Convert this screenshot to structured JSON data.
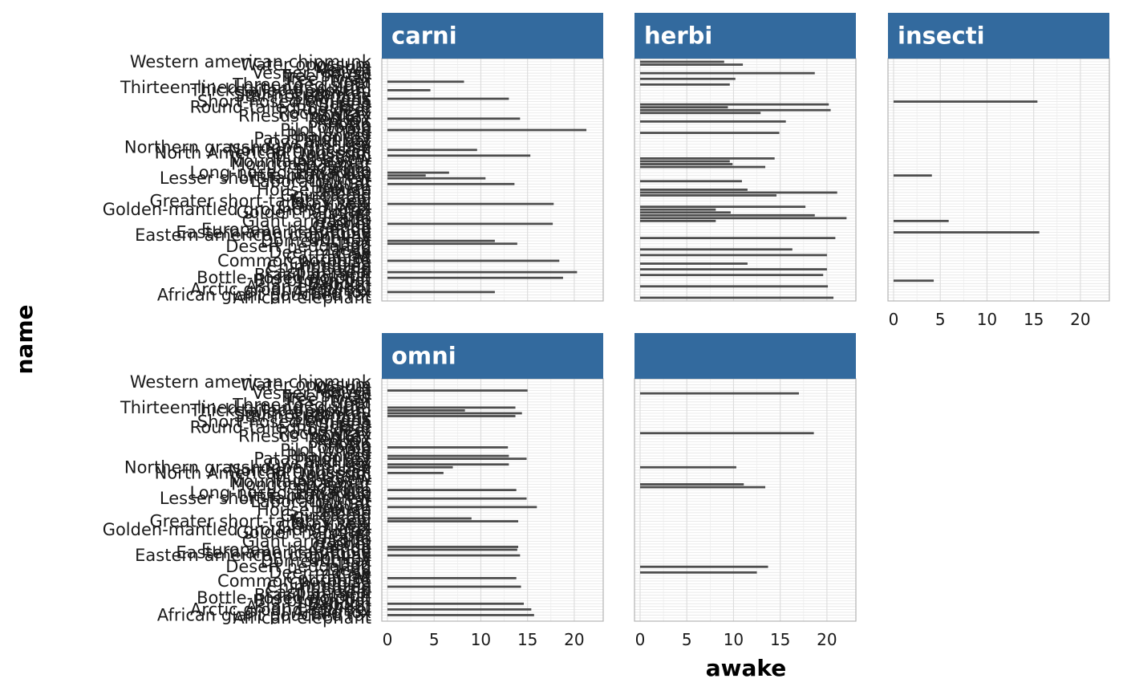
{
  "chart_data": {
    "type": "bar",
    "orientation": "horizontal",
    "xlabel": "awake",
    "ylabel": "name",
    "xlim": [
      -0.6,
      23.1
    ],
    "xticks": [
      0,
      5,
      10,
      15,
      20
    ],
    "strip_color": "#336A9E",
    "bar_color": "#4D4D4D",
    "grid": true,
    "names": [
      "African elephant",
      "African giant pouched rat",
      "Arctic fox",
      "Arctic ground squirrel",
      "Asian elephant",
      "Baboon",
      "Big brown bat",
      "Bottle-nosed dolphin",
      "Brazilian tapir",
      "Caspian seal",
      "Cattle",
      "Chimpanzee",
      "Chinchilla",
      "Common porpoise",
      "Cotton rat",
      "Cow",
      "Deer mouse",
      "Degu",
      "Desert hedgehog",
      "Dog",
      "Domestic cat",
      "Donkey",
      "Eastern american chipmunk",
      "Eastern american mole",
      "European hedgehog",
      "Galago",
      "Genet",
      "Giant armadillo",
      "Giraffe",
      "Goat",
      "Golden hamster",
      "Golden-mantled ground squirrel",
      "Gray hyrax",
      "Gray seal",
      "Greater short-tailed shrew",
      "Grey seal",
      "Guinea pig",
      "Horse",
      "House mouse",
      "Human",
      "Jaguar",
      "Laboratory rat",
      "Lesser short-tailed shrew",
      "Little brown bat",
      "Long-nosed armadillo",
      "Macaque",
      "Mole rat",
      "Mongoose lemur",
      "Mountain beaver",
      "Musk shrew",
      "Mustelid",
      "North American Opossum",
      "Northern fur seal",
      "Northern grasshopper mouse",
      "Owl monkey",
      "Pallid bat",
      "Patas monkey",
      "Phalanger",
      "Pig",
      "Pilot whale",
      "Potoroo",
      "Potto",
      "Rabbit",
      "Red fox",
      "Rhesus monkey",
      "Rock hyrax",
      "Roe deer",
      "Round-tailed muskrat",
      "Sheep",
      "Short-nosed echidna",
      "Slow loris",
      "Star-nosed mole",
      "Squirrel monkey",
      "Thick-tailed opposum",
      "Thirteen-lined ground squirrel",
      "Three-toed sloth",
      "Tiger",
      "Tree hyrax",
      "Tree shrew",
      "Vesper mouse",
      "Vervet",
      "Walrus",
      "Water opossum",
      "Western american chipmunk"
    ],
    "panels": [
      {
        "label": "carni",
        "values": {
          "Arctic fox": 11.5,
          "Bottle-nosed dolphin": 18.8,
          "Caspian seal": 20.3,
          "Cheetah": 11.9,
          "Common porpoise": 18.4,
          "Dog": 13.9,
          "Domestic cat": 11.5,
          "Genet": 17.7,
          "Gray seal": 17.8,
          "Jaguar": 13.6,
          "Little brown bat": 4.1,
          "Lesser short-tailed shrew": 10.5,
          "Long-nosed armadillo": 6.6,
          "Mustelid": 15.3,
          "Northern fur seal": 9.6,
          "Pilot whale": 21.3,
          "Red fox": 14.2,
          "Slow loris": 13.0,
          "Thick-tailed opposum": 4.6,
          "Tiger": 8.2
        }
      },
      {
        "label": "herbi",
        "values": {
          "African elephant": 20.7,
          "Asian elephant": 20.1,
          "Brazilian tapir": 19.6,
          "Cattle": 20.0,
          "Chinchilla": 11.5,
          "Cow": 20.0,
          "Degu": 16.3,
          "Donkey": 20.9,
          "Giant armadillo": 8.1,
          "Giraffe": 22.1,
          "Goat": 18.7,
          "Golden hamster": 9.7,
          "Golden-mantled ground squirrel": 8.1,
          "Gray hyrax": 17.7,
          "Guinea pig": 14.6,
          "Horse": 21.1,
          "House mouse": 11.5,
          "Laboratory rat": 10.9,
          "Mole rat": 13.4,
          "Mongoose lemur": 9.9,
          "Mountain beaver": 9.6,
          "Musk shrew": 14.4,
          "Pig": 14.9,
          "Rabbit": 15.6,
          "Rock hyrax": 12.9,
          "Roe deer": 20.4,
          "Round-tailed muskrat": 9.4,
          "Sheep": 20.2,
          "Three-toed sloth": 9.6,
          "Tree hyrax": 10.2,
          "Vesper mouse": 18.7,
          "Western american chipmunk": 9.0,
          "Water opossum": 11.0
        }
      },
      {
        "label": "insecti",
        "values": {
          "Big brown bat": 4.3,
          "Eastern american mole": 15.6,
          "Giant armadillo": 5.9,
          "Little brown bat": 4.1,
          "Short-nosed echidna": 15.4
        }
      },
      {
        "label": "omni",
        "values": {
          "African giant pouched rat": 15.7,
          "Arctic ground squirrel": 15.4,
          "Baboon": 14.6,
          "Chimpanzee": 14.3,
          "Cotton rat": 13.8,
          "Eastern american chipmunk": 14.2,
          "European hedgehog": 13.9,
          "Galago": 14.0,
          "Grey seal": 9.0,
          "Greater short-tailed shrew": 14.0,
          "Human": 16.0,
          "Lesser short-tailed shrew": 14.9,
          "Macaque": 13.8,
          "North American Opossum": 6.0,
          "Northern grasshopper mouse": 7.0,
          "Owl monkey": 13.0,
          "Patas monkey": 14.9,
          "Phalanger": 13.0,
          "Potoroo": 12.9,
          "Squirrel monkey": 14.4,
          "Star-nosed mole": 13.7,
          "Thick-tailed opposum": 8.3,
          "Thirteen-lined ground squirrel": 13.7,
          "Vervet": 15.0
        }
      },
      {
        "label": "",
        "values": {
          "Deer mouse": 12.5,
          "Desert hedgehog": 13.7,
          "Mole rat": 13.4,
          "Mongoose lemur": 11.1,
          "Northern grasshopper mouse": 10.3,
          "Rock hyrax": 18.6,
          "Vesper mouse": 17.0
        }
      }
    ]
  }
}
